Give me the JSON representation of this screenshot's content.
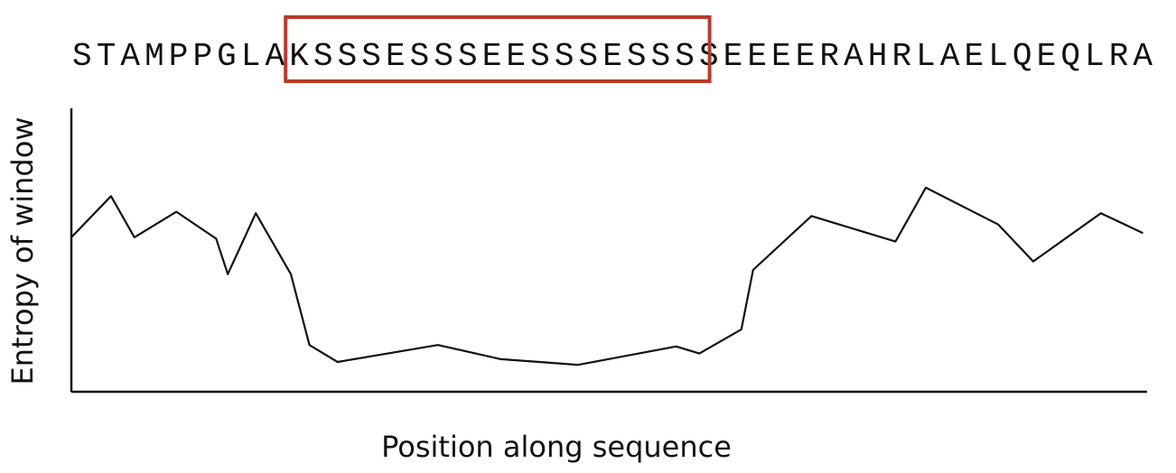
{
  "chart_data": {
    "type": "line",
    "sequence": "STAMPPGLAKSSSESSSEESSSESSSSEEEERAHRLAELQEQLRA",
    "highlight": {
      "start_index": 9,
      "end_index": 26,
      "color": "#b83a2b"
    },
    "xlabel": "Position along sequence",
    "ylabel": "Entropy of window",
    "x": [
      0,
      1.7,
      2.7,
      4.5,
      6.2,
      6.7,
      7.9,
      9.4,
      10.2,
      11.4,
      15.7,
      18.4,
      21.7,
      25.9,
      26.9,
      28.7,
      29.2,
      31.7,
      35.3,
      36.6,
      39.7,
      41.2,
      44.1,
      45.9
    ],
    "values": [
      0.545,
      0.69,
      0.545,
      0.635,
      0.54,
      0.415,
      0.63,
      0.415,
      0.165,
      0.105,
      0.165,
      0.115,
      0.095,
      0.16,
      0.135,
      0.22,
      0.43,
      0.62,
      0.53,
      0.72,
      0.59,
      0.46,
      0.63,
      0.56
    ],
    "xlim": [
      0,
      46
    ],
    "ylim": [
      0,
      1
    ],
    "grid": false,
    "legend": "none",
    "line_color": "#111111"
  }
}
